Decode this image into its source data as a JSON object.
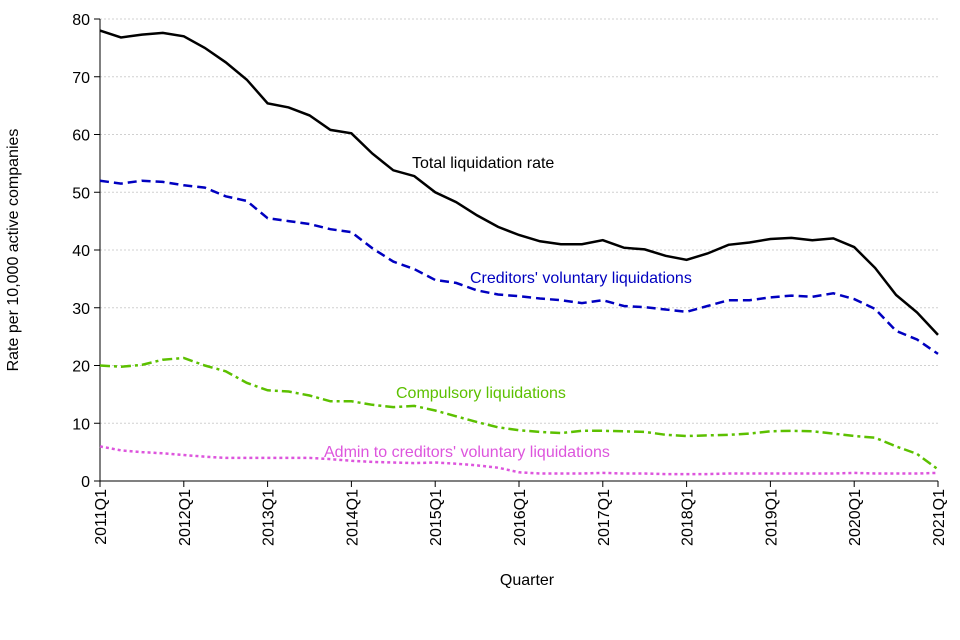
{
  "chart_data": {
    "type": "line",
    "x_label": "Quarter",
    "y_label": "Rate per 10,000 active companies",
    "categories": [
      "2011Q1",
      null,
      null,
      null,
      "2012Q1",
      null,
      null,
      null,
      "2013Q1",
      null,
      null,
      null,
      "2014Q1",
      null,
      null,
      null,
      "2015Q1",
      null,
      null,
      null,
      "2016Q1",
      null,
      null,
      null,
      "2017Q1",
      null,
      null,
      null,
      "2018Q1",
      null,
      null,
      null,
      "2019Q1",
      null,
      null,
      null,
      "2020Q1",
      null,
      null,
      null,
      "2021Q1"
    ],
    "series": [
      {
        "name": "Total liquidation rate",
        "color": "#000000",
        "dash": "solid",
        "values": [
          78,
          76.8,
          77.3,
          77.6,
          77,
          75,
          72.5,
          69.5,
          65.4,
          64.7,
          63.3,
          60.8,
          60.2,
          56.7,
          53.8,
          52.8,
          50,
          48.3,
          46,
          44,
          42.6,
          41.5,
          41,
          41,
          41.7,
          40.4,
          40.1,
          39,
          38.3,
          39.4,
          40.9,
          41.3,
          41.9,
          42.1,
          41.7,
          42,
          40.5,
          36.9,
          32.2,
          29.2,
          25.3
        ]
      },
      {
        "name": "Creditors' voluntary liquidations",
        "color": "#0000c0",
        "dash": "dashed",
        "values": [
          52,
          51.5,
          52,
          51.8,
          51.2,
          50.8,
          49.3,
          48.5,
          45.5,
          45,
          44.5,
          43.6,
          43.1,
          40.3,
          38,
          36.7,
          34.8,
          34.3,
          33,
          32.3,
          32,
          31.6,
          31.3,
          30.8,
          31.3,
          30.3,
          30.1,
          29.7,
          29.3,
          30.3,
          31.3,
          31.3,
          31.8,
          32.1,
          31.9,
          32.5,
          31.5,
          29.8,
          26,
          24.5,
          22
        ]
      },
      {
        "name": "Compulsory liquidations",
        "color": "#5cc000",
        "dash": "dashdot",
        "values": [
          20,
          19.8,
          20.1,
          21,
          21.3,
          20,
          19,
          17,
          15.7,
          15.5,
          14.8,
          13.8,
          13.8,
          13.2,
          12.8,
          13,
          12.2,
          11.2,
          10.2,
          9.3,
          8.8,
          8.5,
          8.3,
          8.7,
          8.7,
          8.6,
          8.5,
          8,
          7.8,
          7.9,
          8,
          8.2,
          8.6,
          8.7,
          8.6,
          8.2,
          7.8,
          7.5,
          6,
          4.7,
          2
        ]
      },
      {
        "name": "Admin to creditors' voluntary liquidations",
        "color": "#dd55dd",
        "dash": "dotted",
        "values": [
          6,
          5.3,
          5,
          4.8,
          4.5,
          4.2,
          4,
          4,
          4,
          4,
          4,
          3.8,
          3.5,
          3.3,
          3.2,
          3.1,
          3.2,
          3,
          2.7,
          2.3,
          1.5,
          1.3,
          1.3,
          1.3,
          1.4,
          1.3,
          1.3,
          1.2,
          1.2,
          1.2,
          1.3,
          1.3,
          1.3,
          1.3,
          1.3,
          1.3,
          1.4,
          1.3,
          1.3,
          1.3,
          1.4
        ]
      }
    ],
    "ylim": [
      0,
      80
    ],
    "yticks": [
      0,
      10,
      20,
      30,
      40,
      50,
      60,
      70,
      80
    ],
    "grid": true
  }
}
